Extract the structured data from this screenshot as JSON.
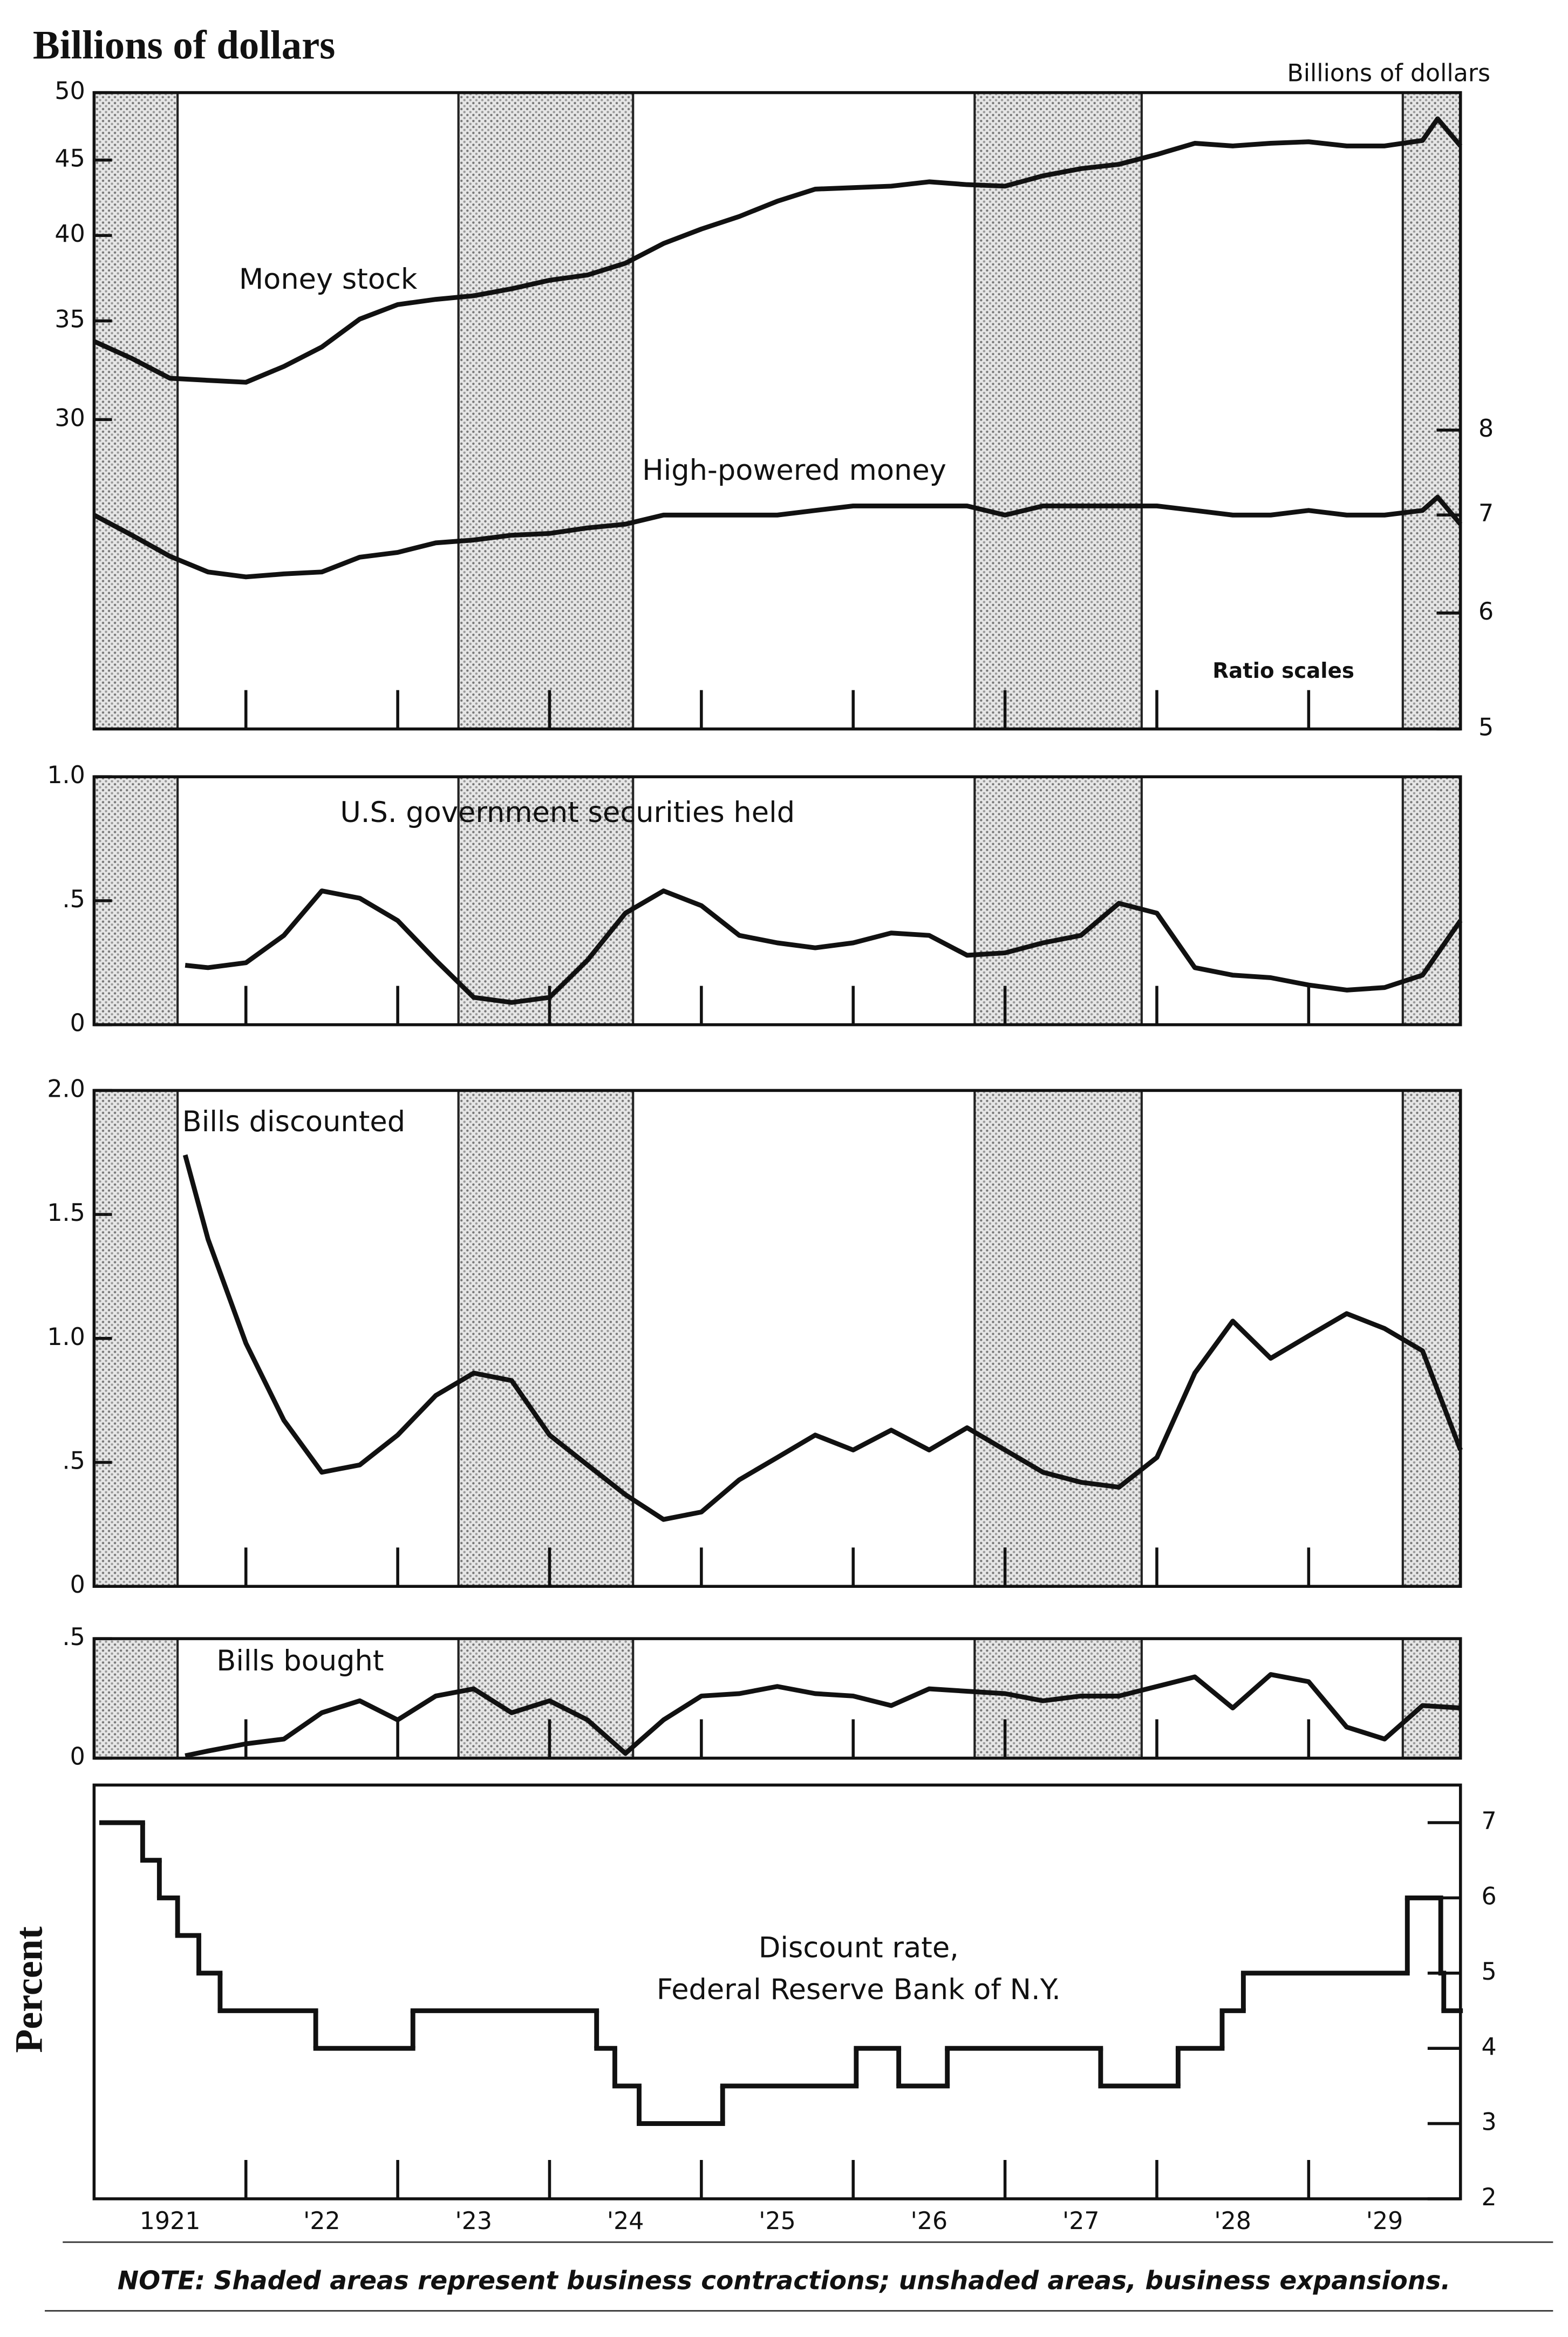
{
  "chart_data": [
    {
      "type": "line",
      "log_scale": true,
      "ylabel": "Billions of dollars",
      "y2label": "Billions of dollars",
      "annotation": "Ratio scales",
      "ylim": [
        18.5,
        50
      ],
      "yticks": [
        30,
        35,
        40,
        45,
        50
      ],
      "y2lim": [
        5.0,
        13.6
      ],
      "y2ticks": [
        5,
        6,
        7,
        8
      ],
      "x": [
        1921,
        1921.25,
        1921.5,
        1921.75,
        1922,
        1922.25,
        1922.5,
        1922.75,
        1923,
        1923.25,
        1923.5,
        1923.75,
        1924,
        1924.25,
        1924.5,
        1924.75,
        1925,
        1925.25,
        1925.5,
        1925.75,
        1926,
        1926.25,
        1926.5,
        1926.75,
        1927,
        1927.25,
        1927.5,
        1927.75,
        1928,
        1928.25,
        1928.5,
        1928.75,
        1929,
        1929.25,
        1929.5,
        1929.75,
        1929.85,
        1930
      ],
      "series": [
        {
          "name": "Money stock",
          "color": "#111111",
          "values": [
            33.9,
            33.0,
            32.0,
            31.9,
            31.8,
            32.6,
            33.6,
            35.1,
            35.9,
            36.2,
            36.4,
            36.8,
            37.3,
            37.6,
            38.3,
            39.5,
            40.4,
            41.2,
            42.2,
            43.0,
            43.1,
            43.2,
            43.5,
            43.3,
            43.2,
            43.9,
            44.4,
            44.7,
            45.4,
            46.2,
            46.0,
            46.2,
            46.3,
            46.0,
            46.0,
            46.4,
            48.0,
            46.0
          ]
        },
        {
          "name": "High-powered money",
          "color": "#111111",
          "axis": "y2",
          "values": [
            7.0,
            6.78,
            6.56,
            6.4,
            6.35,
            6.38,
            6.4,
            6.55,
            6.6,
            6.7,
            6.73,
            6.78,
            6.8,
            6.86,
            6.9,
            7.0,
            7.0,
            7.0,
            7.0,
            7.05,
            7.1,
            7.1,
            7.1,
            7.1,
            7.0,
            7.1,
            7.1,
            7.1,
            7.1,
            7.05,
            7.0,
            7.0,
            7.05,
            7.0,
            7.0,
            7.05,
            7.2,
            6.9
          ]
        }
      ]
    },
    {
      "type": "line",
      "title": "U.S. government securities held",
      "ylim": [
        0,
        1
      ],
      "yticks": [
        0,
        {
          "value": 0.5,
          "label": ".5"
        },
        {
          "value": 1,
          "label": "1.0"
        }
      ],
      "x": [
        1921.6,
        1921.75,
        1922,
        1922.25,
        1922.5,
        1922.75,
        1923,
        1923.25,
        1923.5,
        1923.75,
        1924,
        1924.25,
        1924.5,
        1924.75,
        1925,
        1925.25,
        1925.5,
        1925.75,
        1926,
        1926.25,
        1926.5,
        1926.75,
        1927,
        1927.25,
        1927.5,
        1927.75,
        1928,
        1928.25,
        1928.5,
        1928.75,
        1929,
        1929.25,
        1929.5,
        1929.75,
        1930
      ],
      "series": [
        {
          "name": "U.S. government securities held",
          "color": "#111111",
          "values": [
            0.24,
            0.23,
            0.25,
            0.36,
            0.54,
            0.51,
            0.42,
            0.26,
            0.11,
            0.09,
            0.11,
            0.26,
            0.45,
            0.54,
            0.48,
            0.36,
            0.33,
            0.31,
            0.33,
            0.37,
            0.36,
            0.28,
            0.29,
            0.33,
            0.36,
            0.49,
            0.45,
            0.23,
            0.2,
            0.19,
            0.16,
            0.14,
            0.15,
            0.2,
            0.42
          ]
        }
      ]
    },
    {
      "type": "line",
      "title": "Bills discounted",
      "ylim": [
        0,
        2
      ],
      "yticks": [
        0,
        {
          "value": 0.5,
          "label": ".5"
        },
        {
          "value": 1,
          "label": "1.0"
        },
        1.5,
        {
          "value": 2,
          "label": "2.0"
        }
      ],
      "x": [
        1921.6,
        1921.75,
        1922,
        1922.25,
        1922.5,
        1922.75,
        1923,
        1923.25,
        1923.5,
        1923.75,
        1924,
        1924.25,
        1924.5,
        1924.75,
        1925,
        1925.25,
        1925.5,
        1925.75,
        1926,
        1926.25,
        1926.5,
        1926.75,
        1927,
        1927.25,
        1927.5,
        1927.75,
        1928,
        1928.25,
        1928.5,
        1928.75,
        1929,
        1929.25,
        1929.5,
        1929.75,
        1930
      ],
      "series": [
        {
          "name": "Bills discounted",
          "color": "#111111",
          "values": [
            1.74,
            1.4,
            0.98,
            0.67,
            0.46,
            0.49,
            0.61,
            0.77,
            0.86,
            0.83,
            0.61,
            0.49,
            0.37,
            0.27,
            0.3,
            0.43,
            0.52,
            0.61,
            0.55,
            0.63,
            0.55,
            0.64,
            0.55,
            0.46,
            0.42,
            0.4,
            0.52,
            0.86,
            1.07,
            0.92,
            1.01,
            1.1,
            1.04,
            0.95,
            0.55
          ]
        }
      ]
    },
    {
      "type": "line",
      "title": "Bills bought",
      "ylim": [
        0,
        0.5
      ],
      "yticks": [
        0,
        {
          "value": 0.5,
          "label": ".5"
        }
      ],
      "x": [
        1921.6,
        1921.75,
        1922,
        1922.25,
        1922.5,
        1922.75,
        1923,
        1923.25,
        1923.5,
        1923.75,
        1924,
        1924.25,
        1924.5,
        1924.75,
        1925,
        1925.25,
        1925.5,
        1925.75,
        1926,
        1926.25,
        1926.5,
        1926.75,
        1927,
        1927.25,
        1927.5,
        1927.75,
        1928,
        1928.25,
        1928.5,
        1928.75,
        1929,
        1929.25,
        1929.5,
        1929.75,
        1930
      ],
      "series": [
        {
          "name": "Bills bought",
          "color": "#111111",
          "values": [
            0.01,
            0.03,
            0.06,
            0.08,
            0.19,
            0.24,
            0.16,
            0.26,
            0.29,
            0.19,
            0.24,
            0.16,
            0.02,
            0.16,
            0.26,
            0.27,
            0.3,
            0.27,
            0.26,
            0.22,
            0.29,
            0.28,
            0.27,
            0.24,
            0.26,
            0.26,
            0.3,
            0.34,
            0.21,
            0.35,
            0.32,
            0.13,
            0.08,
            0.22,
            0.21
          ]
        }
      ]
    },
    {
      "type": "step",
      "ylabel": "Percent",
      "annotations": [
        "Discount rate,",
        "Federal Reserve Bank of N.Y."
      ],
      "ylim": [
        2,
        7.5
      ],
      "yticks": [
        2,
        3,
        4,
        5,
        6,
        7
      ],
      "x": [
        1921.05,
        1921.32,
        1921.43,
        1921.55,
        1921.69,
        1921.83,
        1922.46,
        1923.1,
        1924.31,
        1924.43,
        1924.59,
        1925.14,
        1926.02,
        1926.3,
        1926.62,
        1927.63,
        1928.14,
        1928.43,
        1928.57,
        1929.65,
        1929.87,
        1929.89
      ],
      "series": [
        {
          "name": "Discount rate, Federal Reserve Bank of N.Y.",
          "color": "#111111",
          "values": [
            7,
            6.5,
            6,
            5.5,
            5,
            4.5,
            4,
            4.5,
            4,
            3.5,
            3,
            3.5,
            4,
            3.5,
            4,
            3.5,
            4,
            4.5,
            5,
            6,
            5,
            4.5
          ]
        }
      ]
    }
  ],
  "xaxis": {
    "xlim": [
      1921,
      1930
    ],
    "xticks": [
      {
        "value": 1921.5,
        "label": "1921"
      },
      {
        "value": 1922.5,
        "label": "'22"
      },
      {
        "value": 1923.5,
        "label": "'23"
      },
      {
        "value": 1924.5,
        "label": "'24"
      },
      {
        "value": 1925.5,
        "label": "'25"
      },
      {
        "value": 1926.5,
        "label": "'26"
      },
      {
        "value": 1927.5,
        "label": "'27"
      },
      {
        "value": 1928.5,
        "label": "'28"
      },
      {
        "value": 1929.5,
        "label": "'29"
      }
    ],
    "year_marks": [
      1922,
      1923,
      1924,
      1925,
      1926,
      1927,
      1928,
      1929
    ]
  },
  "contractions": [
    [
      1921,
      1921.55
    ],
    [
      1923.4,
      1924.55
    ],
    [
      1926.8,
      1927.9
    ],
    [
      1929.62,
      1930
    ]
  ],
  "note": "NOTE: Shaded areas represent business contractions; unshaded areas, business expansions."
}
